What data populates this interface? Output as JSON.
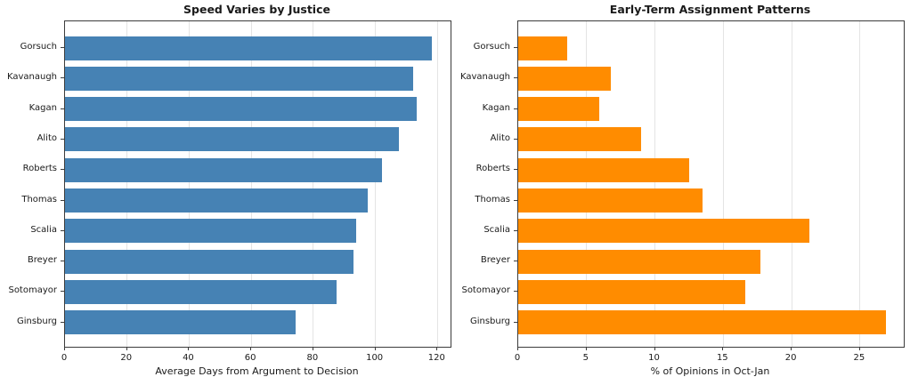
{
  "figure": {
    "background": "#ffffff",
    "text_color": "#1a1a1a",
    "grid_color": "#e4e4e4",
    "spine_color": "#3c3c3c"
  },
  "chart_data": [
    {
      "type": "bar",
      "orientation": "horizontal",
      "title": "Speed Varies by Justice",
      "xlabel": "Average Days from Argument to Decision",
      "ylabel": "",
      "categories": [
        "Gorsuch",
        "Kavanaugh",
        "Kagan",
        "Alito",
        "Roberts",
        "Thomas",
        "Scalia",
        "Breyer",
        "Sotomayor",
        "Ginsburg"
      ],
      "values": [
        118.3,
        112.1,
        113.3,
        107.6,
        102.1,
        97.5,
        93.7,
        92.8,
        87.4,
        74.2
      ],
      "bar_color": "#4682b4",
      "xticks": [
        0,
        20,
        40,
        60,
        80,
        100,
        120
      ],
      "xlim": [
        0,
        124.2
      ],
      "grid": "vertical, light gray, behind bars",
      "legend": "none"
    },
    {
      "type": "bar",
      "orientation": "horizontal",
      "title": "Early-Term Assignment Patterns",
      "xlabel": "% of Opinions in Oct-Jan",
      "ylabel": "",
      "categories": [
        "Gorsuch",
        "Kavanaugh",
        "Kagan",
        "Alito",
        "Roberts",
        "Thomas",
        "Scalia",
        "Breyer",
        "Sotomayor",
        "Ginsburg"
      ],
      "values": [
        3.6,
        6.8,
        5.9,
        9.0,
        12.5,
        13.5,
        21.3,
        17.7,
        16.6,
        26.9
      ],
      "bar_color": "#ff8c00",
      "xticks": [
        0,
        5,
        10,
        15,
        20,
        25
      ],
      "xlim": [
        0,
        28.2
      ],
      "grid": "vertical, light gray, behind bars",
      "legend": "none"
    }
  ]
}
